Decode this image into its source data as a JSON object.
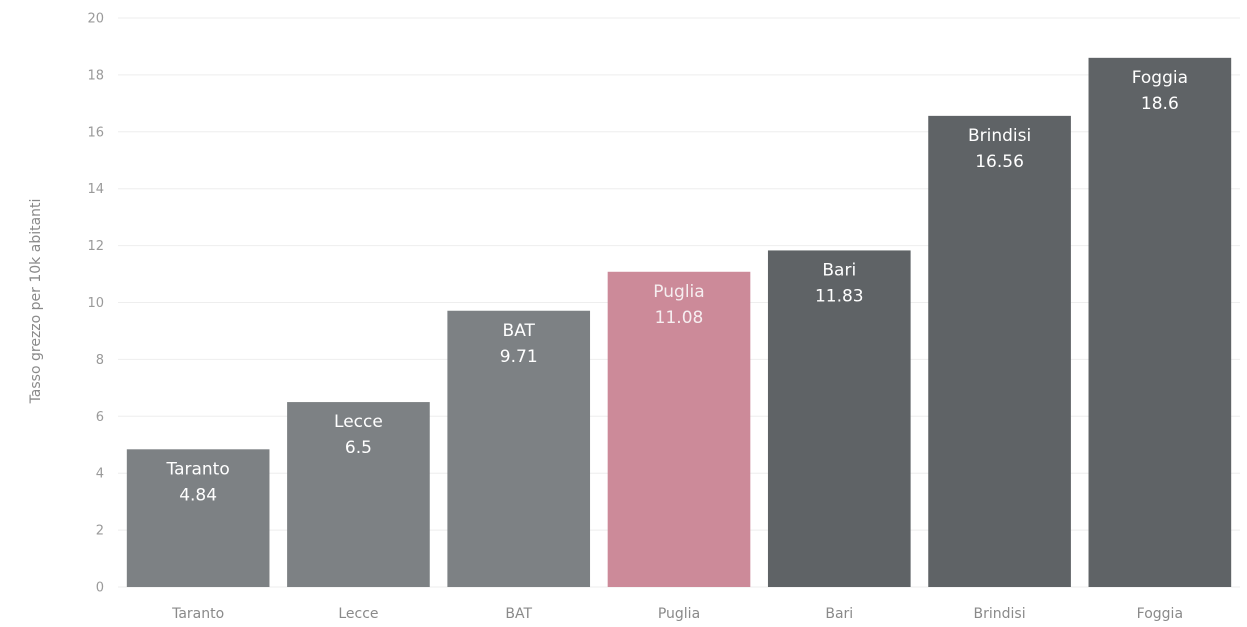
{
  "chart_data": {
    "type": "bar",
    "title": "",
    "xlabel": "",
    "ylabel": "Tasso grezzo per 10k abitanti",
    "ylim": [
      0,
      20
    ],
    "y_ticks": [
      0,
      2,
      4,
      6,
      8,
      10,
      12,
      14,
      16,
      18,
      20
    ],
    "grid": true,
    "legend": "none",
    "categories": [
      "Taranto",
      "Lecce",
      "BAT",
      "Puglia",
      "Bari",
      "Brindisi",
      "Foggia"
    ],
    "values": [
      4.84,
      6.5,
      9.71,
      11.08,
      11.83,
      16.56,
      18.6
    ],
    "value_labels": [
      "4.84",
      "6.5",
      "9.71",
      "11.08",
      "11.83",
      "16.56",
      "18.6"
    ],
    "bar_colors": [
      "#7d8184",
      "#7d8184",
      "#7d8184",
      "#cc8a99",
      "#5f6366",
      "#5f6366",
      "#5f6366"
    ]
  }
}
